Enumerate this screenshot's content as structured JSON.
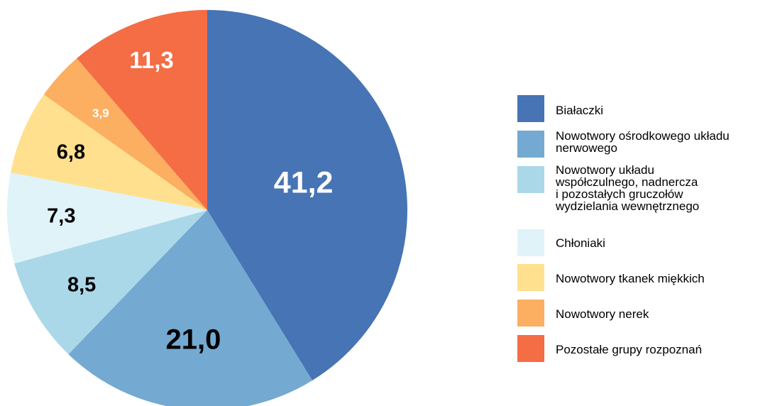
{
  "chart_data": {
    "type": "pie",
    "start": "12 o'clock",
    "direction": "clockwise",
    "slices": [
      {
        "name": "Białaczki",
        "value": 41.2,
        "label": "41,2",
        "color": "#4674B5",
        "label_color": "#ffffff"
      },
      {
        "name": "Nowotwory ośrodkowego układu nerwowego",
        "value": 21.0,
        "label": "21,0",
        "color": "#74A9D1",
        "label_color": "#000000"
      },
      {
        "name": "Nowotwory układu współczulnego, nadnercza i pozostałych gruczołów wydzielania wewnętrznego",
        "value": 8.5,
        "label": "8,5",
        "color": "#ABD8E8",
        "label_color": "#000000"
      },
      {
        "name": "Chłoniaki",
        "value": 7.3,
        "label": "7,3",
        "color": "#E0F3F8",
        "label_color": "#000000"
      },
      {
        "name": "Nowotwory tkanek miękkich",
        "value": 6.8,
        "label": "6,8",
        "color": "#FEE08F",
        "label_color": "#000000"
      },
      {
        "name": "Nowotwory nerek",
        "value": 3.9,
        "label": "3,9",
        "color": "#FCAE61",
        "label_color": "#ffffff"
      },
      {
        "name": "Pozostałe grupy rozpoznań",
        "value": 11.3,
        "label": "11,3",
        "color": "#F46D44",
        "label_color": "#ffffff"
      }
    ],
    "legend": {
      "placement": "right",
      "entries": [
        "Białaczki",
        "Nowotwory ośrodkowego układu\nnerwowego",
        "Nowotwory układu\nwspółczulnego, nadnercza\ni pozostałych gruczołów\nwydzielania wewnętrznego",
        "Chłoniaki",
        "Nowotwory tkanek miękkich",
        "Nowotwory nerek",
        "Pozostałe grupy rozpoznań"
      ]
    }
  }
}
